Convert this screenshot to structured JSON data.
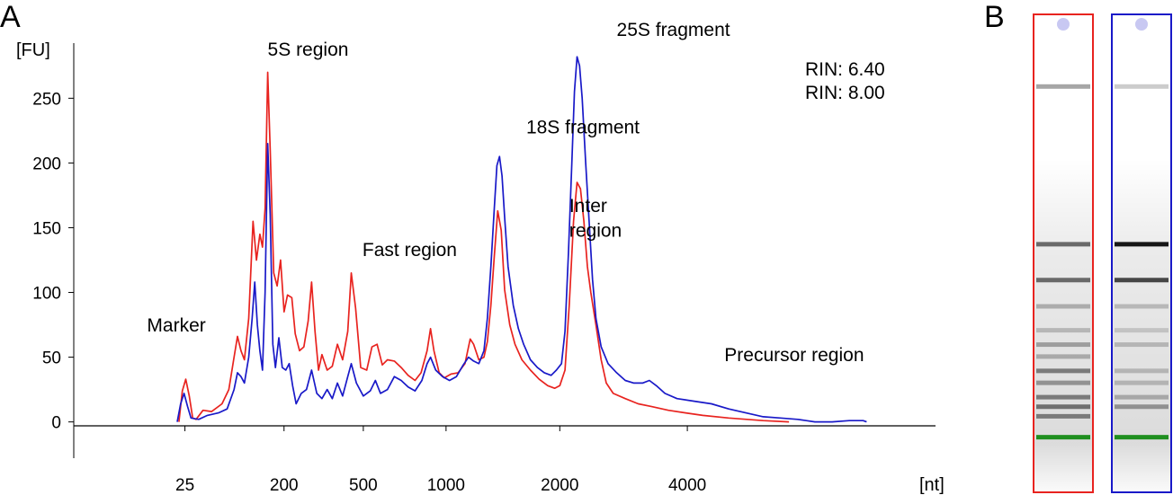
{
  "panels": {
    "a_label": "A",
    "b_label": "B"
  },
  "chart_data": {
    "type": "line",
    "ylabel": "[FU]",
    "xlabel": "[nt]",
    "ylim": [
      -28,
      312
    ],
    "yticks": [
      0,
      50,
      100,
      150,
      200,
      250
    ],
    "xticks": [
      {
        "label": "25",
        "pos": 0.129
      },
      {
        "label": "200",
        "pos": 0.244
      },
      {
        "label": "500",
        "pos": 0.336
      },
      {
        "label": "1000",
        "pos": 0.432
      },
      {
        "label": "2000",
        "pos": 0.564
      },
      {
        "label": "4000",
        "pos": 0.712
      }
    ],
    "xlim": [
      0,
      1
    ],
    "legend_position": "top-right",
    "rin_labels": [
      {
        "text": "RIN: 6.40",
        "color": "#e8231f"
      },
      {
        "text": "RIN: 8.00",
        "color": "#1919c8"
      }
    ],
    "annotations": [
      {
        "text": "Marker",
        "x": 0.085,
        "y": 70
      },
      {
        "text": "5S region",
        "x": 0.225,
        "y": 283
      },
      {
        "text": "Fast region",
        "x": 0.335,
        "y": 128
      },
      {
        "text": "18S fragment",
        "x": 0.525,
        "y": 223
      },
      {
        "text": "Inter",
        "x": 0.575,
        "y": 162
      },
      {
        "text": "region",
        "x": 0.575,
        "y": 143
      },
      {
        "text": "25S fragment",
        "x": 0.63,
        "y": 298
      },
      {
        "text": "Precursor region",
        "x": 0.755,
        "y": 47
      }
    ],
    "series": [
      {
        "color": "#e8231f",
        "points": [
          [
            0.122,
            0
          ],
          [
            0.126,
            24
          ],
          [
            0.13,
            33
          ],
          [
            0.134,
            20
          ],
          [
            0.138,
            3
          ],
          [
            0.142,
            2
          ],
          [
            0.15,
            9
          ],
          [
            0.16,
            8
          ],
          [
            0.172,
            14
          ],
          [
            0.18,
            25
          ],
          [
            0.186,
            50
          ],
          [
            0.19,
            66
          ],
          [
            0.194,
            55
          ],
          [
            0.198,
            48
          ],
          [
            0.203,
            80
          ],
          [
            0.208,
            155
          ],
          [
            0.212,
            125
          ],
          [
            0.216,
            145
          ],
          [
            0.219,
            135
          ],
          [
            0.222,
            165
          ],
          [
            0.225,
            270
          ],
          [
            0.228,
            210
          ],
          [
            0.232,
            115
          ],
          [
            0.236,
            105
          ],
          [
            0.24,
            125
          ],
          [
            0.244,
            85
          ],
          [
            0.248,
            98
          ],
          [
            0.253,
            96
          ],
          [
            0.257,
            68
          ],
          [
            0.262,
            55
          ],
          [
            0.267,
            58
          ],
          [
            0.272,
            78
          ],
          [
            0.276,
            108
          ],
          [
            0.28,
            70
          ],
          [
            0.284,
            40
          ],
          [
            0.288,
            52
          ],
          [
            0.294,
            40
          ],
          [
            0.3,
            43
          ],
          [
            0.306,
            60
          ],
          [
            0.312,
            48
          ],
          [
            0.318,
            70
          ],
          [
            0.322,
            115
          ],
          [
            0.327,
            88
          ],
          [
            0.333,
            42
          ],
          [
            0.34,
            40
          ],
          [
            0.346,
            58
          ],
          [
            0.352,
            60
          ],
          [
            0.358,
            44
          ],
          [
            0.364,
            48
          ],
          [
            0.372,
            47
          ],
          [
            0.38,
            42
          ],
          [
            0.388,
            36
          ],
          [
            0.396,
            32
          ],
          [
            0.403,
            38
          ],
          [
            0.41,
            55
          ],
          [
            0.414,
            72
          ],
          [
            0.418,
            55
          ],
          [
            0.424,
            38
          ],
          [
            0.43,
            34
          ],
          [
            0.438,
            37
          ],
          [
            0.446,
            38
          ],
          [
            0.454,
            45
          ],
          [
            0.46,
            64
          ],
          [
            0.464,
            60
          ],
          [
            0.47,
            48
          ],
          [
            0.476,
            50
          ],
          [
            0.48,
            62
          ],
          [
            0.484,
            90
          ],
          [
            0.488,
            128
          ],
          [
            0.492,
            163
          ],
          [
            0.496,
            148
          ],
          [
            0.5,
            102
          ],
          [
            0.506,
            75
          ],
          [
            0.512,
            60
          ],
          [
            0.52,
            48
          ],
          [
            0.53,
            40
          ],
          [
            0.54,
            33
          ],
          [
            0.55,
            28
          ],
          [
            0.558,
            26
          ],
          [
            0.564,
            28
          ],
          [
            0.57,
            40
          ],
          [
            0.575,
            90
          ],
          [
            0.58,
            155
          ],
          [
            0.584,
            185
          ],
          [
            0.588,
            180
          ],
          [
            0.592,
            155
          ],
          [
            0.596,
            120
          ],
          [
            0.6,
            100
          ],
          [
            0.606,
            75
          ],
          [
            0.612,
            48
          ],
          [
            0.618,
            30
          ],
          [
            0.626,
            22
          ],
          [
            0.64,
            18
          ],
          [
            0.655,
            14
          ],
          [
            0.67,
            12
          ],
          [
            0.69,
            9
          ],
          [
            0.71,
            7
          ],
          [
            0.73,
            5
          ],
          [
            0.76,
            3
          ],
          [
            0.8,
            1
          ],
          [
            0.83,
            0
          ]
        ]
      },
      {
        "color": "#1919c8",
        "points": [
          [
            0.12,
            0
          ],
          [
            0.124,
            14
          ],
          [
            0.128,
            22
          ],
          [
            0.132,
            12
          ],
          [
            0.136,
            3
          ],
          [
            0.145,
            2
          ],
          [
            0.155,
            5
          ],
          [
            0.168,
            7
          ],
          [
            0.178,
            10
          ],
          [
            0.186,
            25
          ],
          [
            0.19,
            38
          ],
          [
            0.194,
            35
          ],
          [
            0.198,
            30
          ],
          [
            0.203,
            50
          ],
          [
            0.207,
            80
          ],
          [
            0.21,
            108
          ],
          [
            0.213,
            75
          ],
          [
            0.216,
            55
          ],
          [
            0.219,
            40
          ],
          [
            0.222,
            100
          ],
          [
            0.225,
            215
          ],
          [
            0.228,
            160
          ],
          [
            0.231,
            60
          ],
          [
            0.234,
            42
          ],
          [
            0.238,
            65
          ],
          [
            0.242,
            42
          ],
          [
            0.246,
            40
          ],
          [
            0.25,
            45
          ],
          [
            0.254,
            28
          ],
          [
            0.258,
            14
          ],
          [
            0.264,
            22
          ],
          [
            0.27,
            25
          ],
          [
            0.276,
            40
          ],
          [
            0.282,
            22
          ],
          [
            0.288,
            18
          ],
          [
            0.294,
            25
          ],
          [
            0.3,
            18
          ],
          [
            0.306,
            30
          ],
          [
            0.312,
            20
          ],
          [
            0.318,
            35
          ],
          [
            0.322,
            45
          ],
          [
            0.328,
            30
          ],
          [
            0.336,
            20
          ],
          [
            0.344,
            24
          ],
          [
            0.35,
            32
          ],
          [
            0.356,
            22
          ],
          [
            0.364,
            25
          ],
          [
            0.372,
            35
          ],
          [
            0.38,
            32
          ],
          [
            0.388,
            27
          ],
          [
            0.396,
            24
          ],
          [
            0.404,
            32
          ],
          [
            0.41,
            45
          ],
          [
            0.414,
            50
          ],
          [
            0.42,
            40
          ],
          [
            0.428,
            35
          ],
          [
            0.436,
            32
          ],
          [
            0.444,
            35
          ],
          [
            0.452,
            44
          ],
          [
            0.458,
            50
          ],
          [
            0.464,
            47
          ],
          [
            0.47,
            45
          ],
          [
            0.476,
            55
          ],
          [
            0.48,
            80
          ],
          [
            0.484,
            120
          ],
          [
            0.488,
            165
          ],
          [
            0.491,
            198
          ],
          [
            0.494,
            205
          ],
          [
            0.497,
            190
          ],
          [
            0.5,
            158
          ],
          [
            0.504,
            120
          ],
          [
            0.51,
            90
          ],
          [
            0.516,
            72
          ],
          [
            0.522,
            60
          ],
          [
            0.53,
            48
          ],
          [
            0.538,
            42
          ],
          [
            0.546,
            38
          ],
          [
            0.554,
            36
          ],
          [
            0.56,
            40
          ],
          [
            0.566,
            45
          ],
          [
            0.57,
            70
          ],
          [
            0.574,
            130
          ],
          [
            0.578,
            200
          ],
          [
            0.581,
            255
          ],
          [
            0.584,
            282
          ],
          [
            0.587,
            275
          ],
          [
            0.59,
            250
          ],
          [
            0.594,
            200
          ],
          [
            0.598,
            155
          ],
          [
            0.602,
            110
          ],
          [
            0.606,
            80
          ],
          [
            0.612,
            58
          ],
          [
            0.62,
            45
          ],
          [
            0.63,
            38
          ],
          [
            0.64,
            32
          ],
          [
            0.65,
            30
          ],
          [
            0.66,
            30
          ],
          [
            0.668,
            32
          ],
          [
            0.676,
            28
          ],
          [
            0.686,
            22
          ],
          [
            0.7,
            18
          ],
          [
            0.72,
            16
          ],
          [
            0.74,
            14
          ],
          [
            0.76,
            10
          ],
          [
            0.78,
            7
          ],
          [
            0.8,
            4
          ],
          [
            0.82,
            3
          ],
          [
            0.84,
            2
          ],
          [
            0.85,
            1
          ],
          [
            0.86,
            0
          ],
          [
            0.88,
            0
          ],
          [
            0.9,
            1
          ],
          [
            0.916,
            1
          ],
          [
            0.92,
            0
          ]
        ]
      }
    ]
  },
  "gel": {
    "lanes": [
      {
        "border": "#e8231f",
        "bands": [
          {
            "y": 0.15,
            "a": 0.35
          },
          {
            "y": 0.48,
            "a": 0.55
          },
          {
            "y": 0.555,
            "a": 0.55
          },
          {
            "y": 0.61,
            "a": 0.25
          },
          {
            "y": 0.66,
            "a": 0.2
          },
          {
            "y": 0.69,
            "a": 0.3
          },
          {
            "y": 0.715,
            "a": 0.25
          },
          {
            "y": 0.745,
            "a": 0.45
          },
          {
            "y": 0.77,
            "a": 0.35
          },
          {
            "y": 0.8,
            "a": 0.45
          },
          {
            "y": 0.82,
            "a": 0.5
          },
          {
            "y": 0.84,
            "a": 0.45
          }
        ]
      },
      {
        "border": "#1919c8",
        "bands": [
          {
            "y": 0.15,
            "a": 0.2
          },
          {
            "y": 0.48,
            "a": 0.9
          },
          {
            "y": 0.555,
            "a": 0.7
          },
          {
            "y": 0.61,
            "a": 0.2
          },
          {
            "y": 0.66,
            "a": 0.15
          },
          {
            "y": 0.69,
            "a": 0.2
          },
          {
            "y": 0.745,
            "a": 0.2
          },
          {
            "y": 0.77,
            "a": 0.2
          },
          {
            "y": 0.8,
            "a": 0.25
          },
          {
            "y": 0.82,
            "a": 0.35
          }
        ]
      }
    ]
  }
}
